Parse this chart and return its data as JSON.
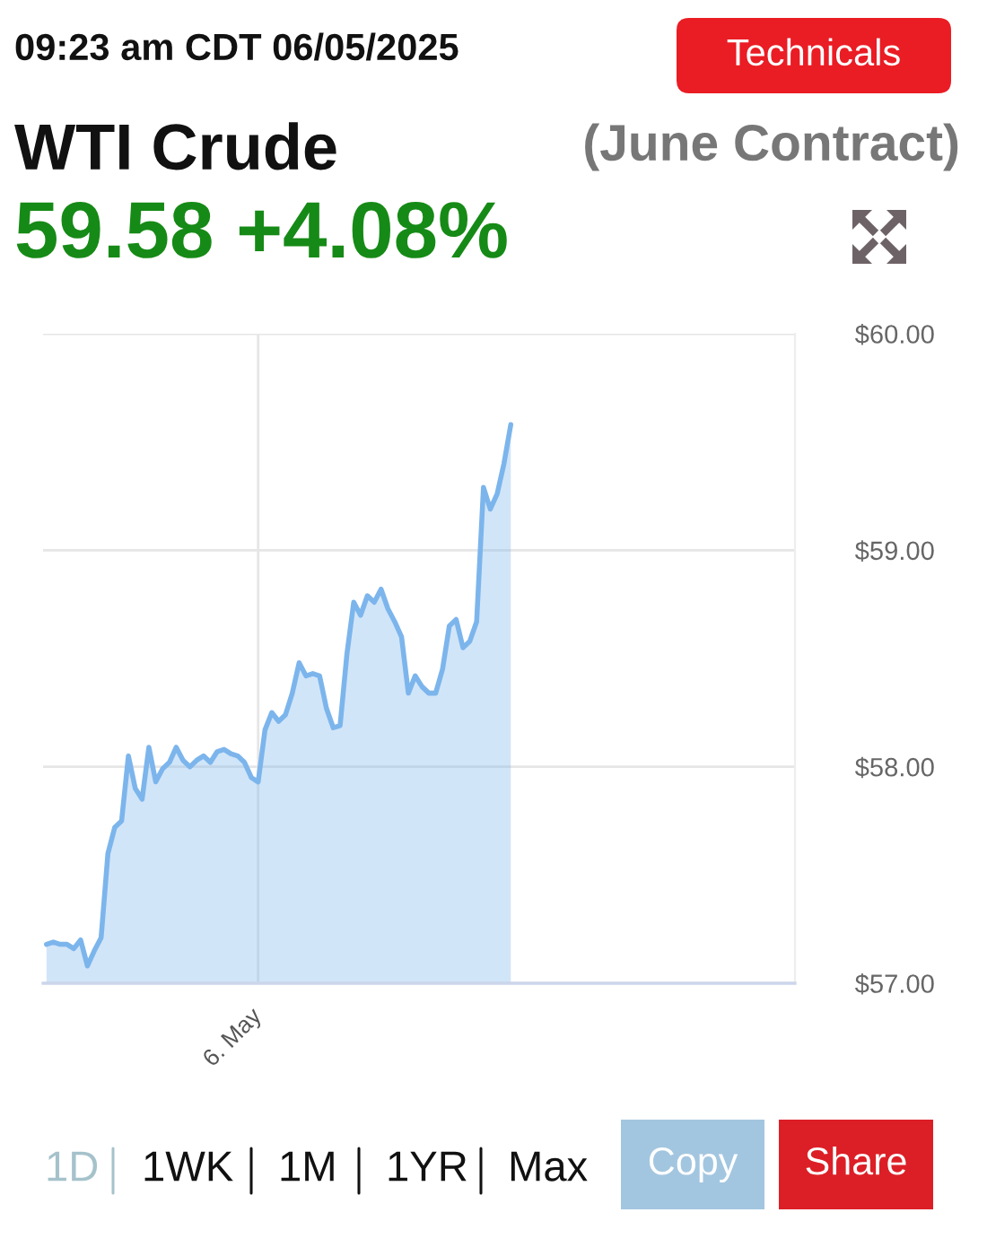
{
  "chart_data": {
    "type": "area",
    "title": "WTI Crude",
    "subtitle": "(June Contract)",
    "annotations": [
      "09:23 am CDT 06/05/2025",
      "59.58 +4.08%",
      "Technicals",
      "1D",
      "1WK",
      "1M",
      "1YR",
      "Max",
      "Copy",
      "Share"
    ],
    "categories": [
      null,
      null,
      null,
      null,
      null,
      null,
      null,
      null,
      null,
      null,
      null,
      null,
      null,
      null,
      null,
      null,
      null,
      null,
      null,
      null,
      null,
      null,
      null,
      null,
      null,
      null,
      null,
      null,
      null,
      null,
      null,
      "6. May",
      null,
      null,
      null,
      null,
      null,
      null,
      null,
      null,
      null,
      null,
      null,
      null,
      null,
      null,
      null,
      null,
      null,
      null,
      null,
      null,
      null,
      null,
      null,
      null,
      null,
      null,
      null,
      null,
      null,
      null,
      null,
      null,
      null,
      null,
      null,
      null,
      null
    ],
    "series": [
      {
        "color": "#7cb5ec",
        "values": [
          57.18,
          57.19,
          57.18,
          57.18,
          57.16,
          57.2,
          57.08,
          57.15,
          57.21,
          57.6,
          57.72,
          57.75,
          58.05,
          57.9,
          57.85,
          58.09,
          57.93,
          57.99,
          58.02,
          58.09,
          58.03,
          58.0,
          58.03,
          58.05,
          58.02,
          58.07,
          58.08,
          58.06,
          58.05,
          58.02,
          57.95,
          57.93,
          58.17,
          58.25,
          58.21,
          58.24,
          58.34,
          58.48,
          58.42,
          58.43,
          58.42,
          58.27,
          58.18,
          58.19,
          58.52,
          58.76,
          58.7,
          58.79,
          58.76,
          58.82,
          58.73,
          58.67,
          58.6,
          58.34,
          58.42,
          58.37,
          58.34,
          58.34,
          58.45,
          58.65,
          58.68,
          58.55,
          58.58,
          58.67,
          59.29,
          59.19,
          59.26,
          59.4,
          59.58
        ]
      }
    ],
    "ylim": [
      57,
      60
    ],
    "yticks": [
      {
        "value": 57,
        "label": "$57.00"
      },
      {
        "value": 58,
        "label": "$58.00"
      },
      {
        "value": 59,
        "label": "$59.00"
      },
      {
        "value": 60,
        "label": "$60.00"
      }
    ],
    "grid": true
  }
}
